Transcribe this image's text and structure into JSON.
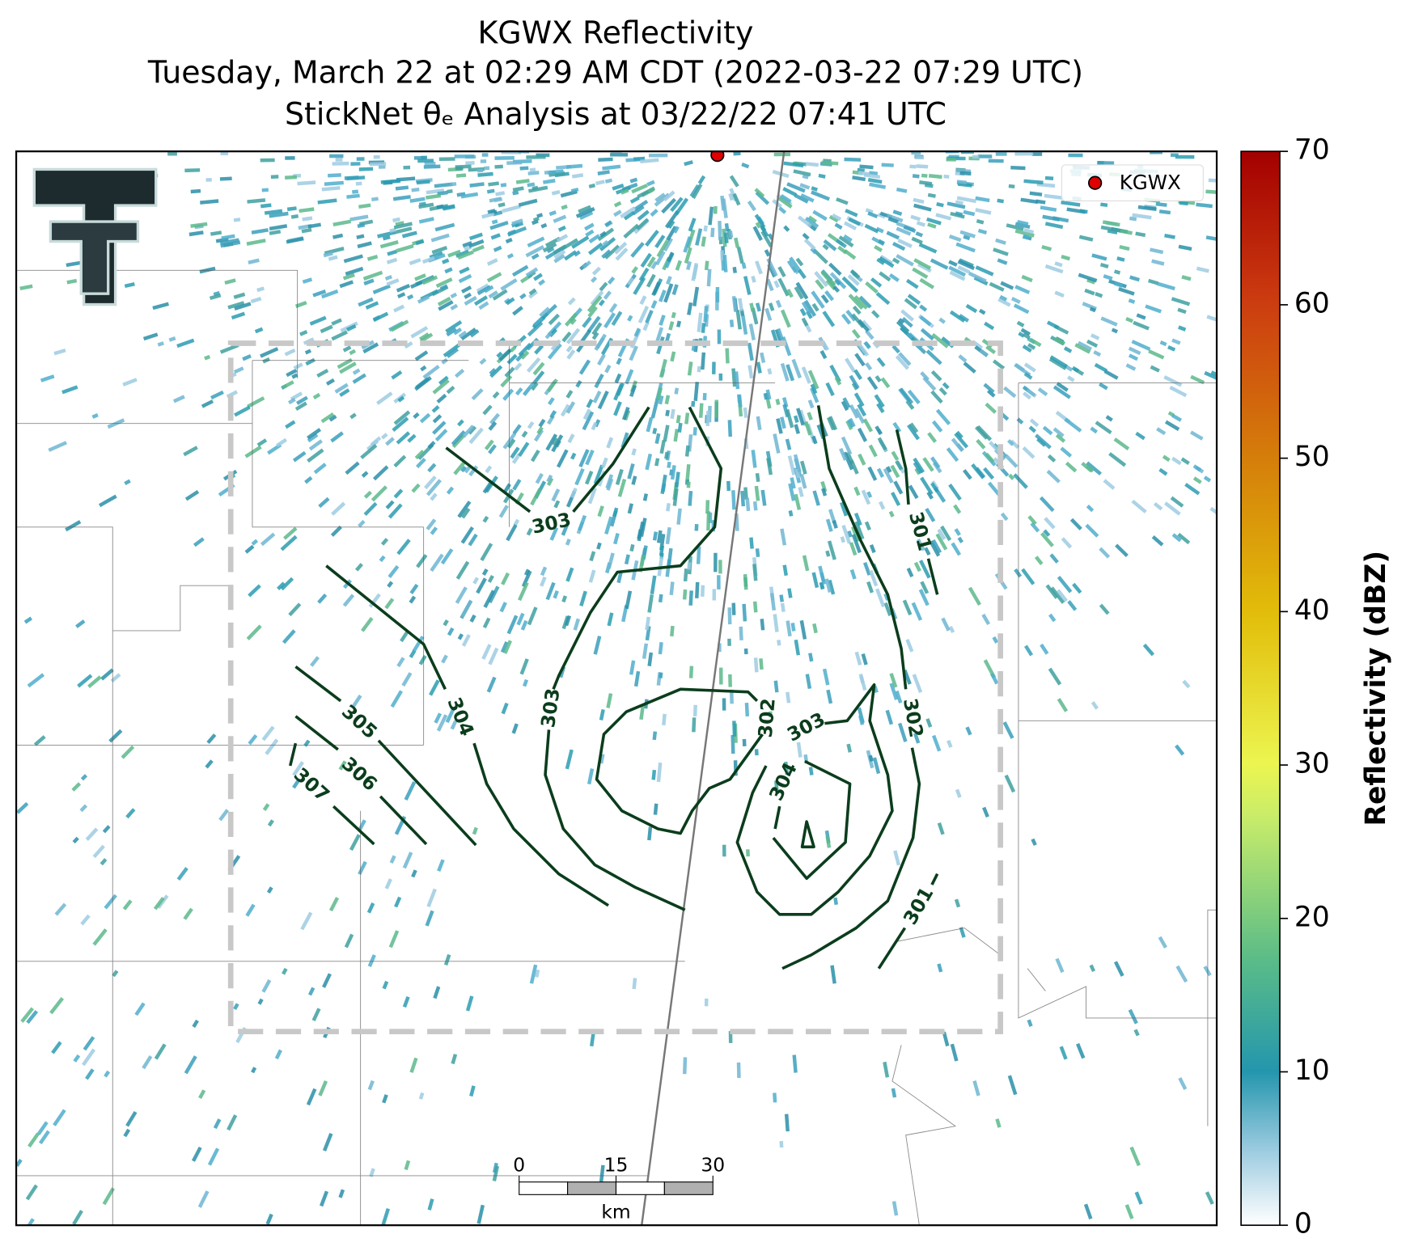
{
  "header": {
    "title": "KGWX Reflectivity",
    "subtitle": "Tuesday, March 22 at 02:29 AM CDT (2022-03-22 07:29 UTC)",
    "analysis": "StickNet θₑ Analysis at 03/22/22 07:41 UTC"
  },
  "legend": {
    "label": "KGWX"
  },
  "contours": {
    "labels": [
      303,
      303,
      304,
      305,
      306,
      307,
      302,
      303,
      304,
      302,
      301,
      301
    ]
  },
  "colorbar": {
    "label": "Reflectivity (dBZ)",
    "lim": [
      0,
      70
    ],
    "ticks": [
      0,
      10,
      20,
      30,
      40,
      50,
      60,
      70
    ]
  },
  "scalebar": {
    "ticks": [
      0,
      15,
      30
    ],
    "unit": "km"
  }
}
